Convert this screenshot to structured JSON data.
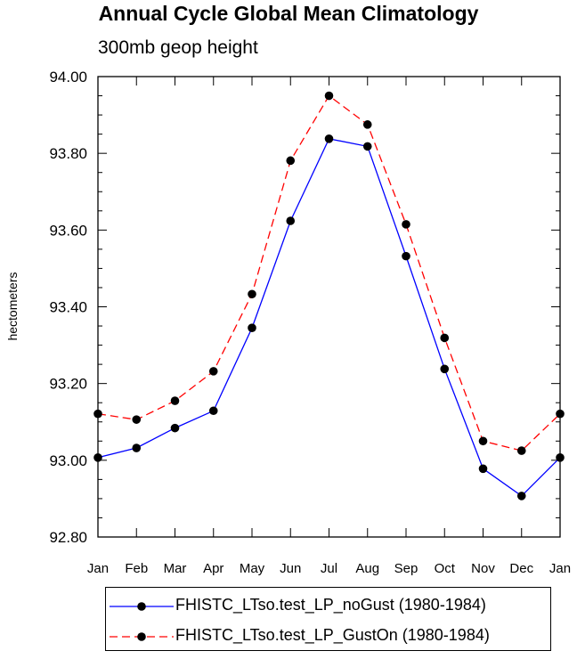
{
  "chart_data": {
    "type": "line",
    "title": "Annual Cycle Global Mean Climatology",
    "subtitle": "300mb geop height",
    "xlabel": "",
    "ylabel": "hectometers",
    "categories": [
      "Jan",
      "Feb",
      "Mar",
      "Apr",
      "May",
      "Jun",
      "Jul",
      "Aug",
      "Sep",
      "Oct",
      "Nov",
      "Dec",
      "Jan"
    ],
    "ylim": [
      92.8,
      94.0
    ],
    "yticks": [
      "92.80",
      "93.00",
      "93.20",
      "93.40",
      "93.60",
      "93.80",
      "94.00"
    ],
    "grid": false,
    "legend_position": "bottom",
    "series": [
      {
        "name": "FHISTC_LTso.test_LP_noGust (1980-1984)",
        "color": "#0000ff",
        "dash": "solid",
        "marker": "filled-circle",
        "values": [
          93.007,
          93.032,
          93.084,
          93.129,
          93.345,
          93.624,
          93.838,
          93.818,
          93.532,
          93.238,
          92.978,
          92.907,
          93.007
        ]
      },
      {
        "name": "FHISTC_LTso.test_LP_GustOn (1980-1984)",
        "color": "#ff0000",
        "dash": "dashed",
        "marker": "filled-circle",
        "values": [
          93.121,
          93.106,
          93.155,
          93.232,
          93.433,
          93.781,
          93.95,
          93.875,
          93.615,
          93.319,
          93.05,
          93.025,
          93.121
        ]
      }
    ]
  }
}
